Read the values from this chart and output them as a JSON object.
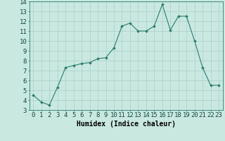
{
  "x": [
    0,
    1,
    2,
    3,
    4,
    5,
    6,
    7,
    8,
    9,
    10,
    11,
    12,
    13,
    14,
    15,
    16,
    17,
    18,
    19,
    20,
    21,
    22,
    23
  ],
  "y": [
    4.5,
    3.8,
    3.5,
    5.3,
    7.3,
    7.5,
    7.7,
    7.8,
    8.2,
    8.3,
    9.3,
    11.5,
    11.8,
    11.0,
    11.0,
    11.5,
    13.7,
    11.1,
    12.5,
    12.5,
    10.0,
    7.3,
    5.5,
    5.5
  ],
  "line_color": "#2e7d6e",
  "marker": "D",
  "marker_size": 2.0,
  "bg_color": "#c8e8e0",
  "grid_color": "#aed0c8",
  "xlabel": "Humidex (Indice chaleur)",
  "ylim": [
    3,
    14
  ],
  "xlim_min": -0.5,
  "xlim_max": 23.5,
  "yticks": [
    3,
    4,
    5,
    6,
    7,
    8,
    9,
    10,
    11,
    12,
    13,
    14
  ],
  "xticks": [
    0,
    1,
    2,
    3,
    4,
    5,
    6,
    7,
    8,
    9,
    10,
    11,
    12,
    13,
    14,
    15,
    16,
    17,
    18,
    19,
    20,
    21,
    22,
    23
  ],
  "xtick_labels": [
    "0",
    "1",
    "2",
    "3",
    "4",
    "5",
    "6",
    "7",
    "8",
    "9",
    "10",
    "11",
    "12",
    "13",
    "14",
    "15",
    "16",
    "17",
    "18",
    "19",
    "20",
    "21",
    "22",
    "23"
  ],
  "xlabel_fontsize": 7,
  "tick_fontsize": 6.5
}
